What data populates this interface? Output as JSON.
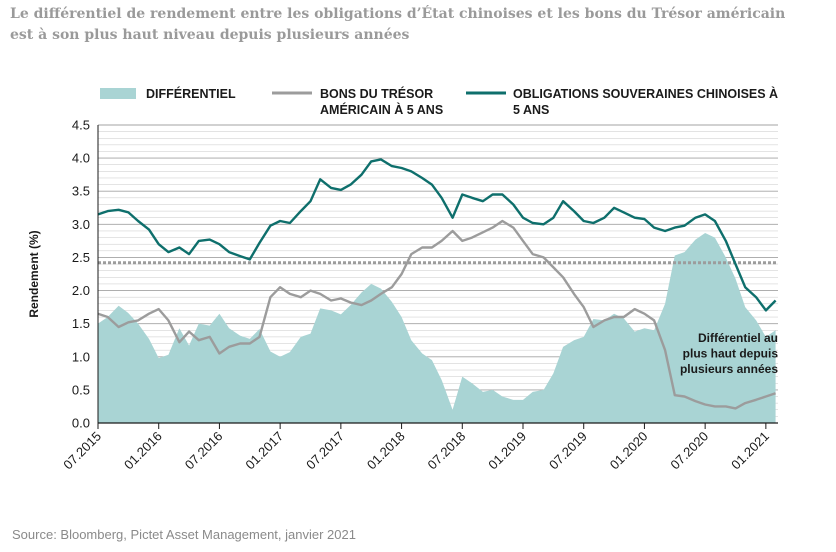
{
  "title": "Le différentiel de rendement entre les obligations d’État chinoises et les bons du Trésor américain est à son plus haut niveau depuis plusieurs années",
  "source": "Source: Bloomberg, Pictet Asset Management, janvier 2021",
  "colors": {
    "spread": "#a9d4d4",
    "us": "#9c9c9c",
    "cn": "#0e6f6c",
    "dotted": "#9c9c9c",
    "grid": "#9a9a9a"
  },
  "chart_data": {
    "type": "line",
    "ylabel": "Rendement (%)",
    "ylim": [
      0.0,
      4.5
    ],
    "yticks": [
      "0.0",
      "0.5",
      "1.0",
      "1.5",
      "2.0",
      "2.5",
      "3.0",
      "3.5",
      "4.0",
      "4.5"
    ],
    "xlim": [
      2015.5,
      2021.1
    ],
    "xticks": [
      {
        "t": 2015.5,
        "label": "07.2015"
      },
      {
        "t": 2016.0,
        "label": "01.2016"
      },
      {
        "t": 2016.5,
        "label": "07.2016"
      },
      {
        "t": 2017.0,
        "label": "01.2017"
      },
      {
        "t": 2017.5,
        "label": "07.2017"
      },
      {
        "t": 2018.0,
        "label": "01.2018"
      },
      {
        "t": 2018.5,
        "label": "07.2018"
      },
      {
        "t": 2019.0,
        "label": "01.2019"
      },
      {
        "t": 2019.5,
        "label": "07.2019"
      },
      {
        "t": 2020.0,
        "label": "01.2020"
      },
      {
        "t": 2020.5,
        "label": "07.2020"
      },
      {
        "t": 2021.0,
        "label": "01.2021"
      }
    ],
    "dotted_reference": 2.42,
    "annotation": [
      "Différentiel au",
      "plus haut depuis",
      "plusieurs années"
    ],
    "legend": {
      "spread": [
        "DIFFÉRENTIEL"
      ],
      "us": [
        "BONS DU TRÉSOR",
        "AMÉRICAIN À 5 ANS"
      ],
      "cn": [
        "OBLIGATIONS SOUVERAINES CHINOISES À",
        "5 ANS"
      ]
    },
    "series": [
      {
        "name": "OBLIGATIONS SOUVERAINES CHINOISES À 5 ANS",
        "key": "cn",
        "x": [
          2015.5,
          2015.58,
          2015.67,
          2015.75,
          2015.83,
          2015.92,
          2016.0,
          2016.08,
          2016.17,
          2016.25,
          2016.33,
          2016.42,
          2016.5,
          2016.58,
          2016.67,
          2016.75,
          2016.83,
          2016.92,
          2017.0,
          2017.08,
          2017.17,
          2017.25,
          2017.33,
          2017.42,
          2017.5,
          2017.58,
          2017.67,
          2017.75,
          2017.83,
          2017.92,
          2018.0,
          2018.08,
          2018.17,
          2018.25,
          2018.33,
          2018.42,
          2018.5,
          2018.58,
          2018.67,
          2018.75,
          2018.83,
          2018.92,
          2019.0,
          2019.08,
          2019.17,
          2019.25,
          2019.33,
          2019.42,
          2019.5,
          2019.58,
          2019.67,
          2019.75,
          2019.83,
          2019.92,
          2020.0,
          2020.08,
          2020.17,
          2020.25,
          2020.33,
          2020.42,
          2020.5,
          2020.58,
          2020.67,
          2020.75,
          2020.83,
          2020.92,
          2021.0,
          2021.08
        ],
        "values": [
          3.15,
          3.2,
          3.22,
          3.18,
          3.05,
          2.92,
          2.7,
          2.58,
          2.65,
          2.55,
          2.75,
          2.77,
          2.7,
          2.58,
          2.52,
          2.47,
          2.72,
          2.98,
          3.05,
          3.02,
          3.2,
          3.35,
          3.68,
          3.55,
          3.52,
          3.6,
          3.75,
          3.95,
          3.98,
          3.88,
          3.85,
          3.8,
          3.7,
          3.6,
          3.4,
          3.1,
          3.45,
          3.4,
          3.35,
          3.45,
          3.45,
          3.3,
          3.1,
          3.02,
          3.0,
          3.1,
          3.35,
          3.2,
          3.05,
          3.02,
          3.1,
          3.25,
          3.18,
          3.1,
          3.08,
          2.95,
          2.9,
          2.95,
          2.98,
          3.1,
          3.15,
          3.05,
          2.75,
          2.4,
          2.05,
          1.9,
          1.7,
          1.85
        ],
        "color": "#0e6f6c"
      },
      {
        "name": "BONS DU TRÉSOR AMÉRICAIN À 5 ANS",
        "key": "us",
        "x": [
          2015.5,
          2015.58,
          2015.67,
          2015.75,
          2015.83,
          2015.92,
          2016.0,
          2016.08,
          2016.17,
          2016.25,
          2016.33,
          2016.42,
          2016.5,
          2016.58,
          2016.67,
          2016.75,
          2016.83,
          2016.92,
          2017.0,
          2017.08,
          2017.17,
          2017.25,
          2017.33,
          2017.42,
          2017.5,
          2017.58,
          2017.67,
          2017.75,
          2017.83,
          2017.92,
          2018.0,
          2018.08,
          2018.17,
          2018.25,
          2018.33,
          2018.42,
          2018.5,
          2018.58,
          2018.67,
          2018.75,
          2018.83,
          2018.92,
          2019.0,
          2019.08,
          2019.17,
          2019.25,
          2019.33,
          2019.42,
          2019.5,
          2019.58,
          2019.67,
          2019.75,
          2019.83,
          2019.92,
          2020.0,
          2020.08,
          2020.17,
          2020.25,
          2020.33,
          2020.42,
          2020.5,
          2020.58,
          2020.67,
          2020.75,
          2020.83,
          2020.92,
          2021.0,
          2021.08
        ],
        "values": [
          1.65,
          1.6,
          1.45,
          1.52,
          1.55,
          1.65,
          1.72,
          1.55,
          1.22,
          1.38,
          1.25,
          1.3,
          1.05,
          1.15,
          1.2,
          1.2,
          1.3,
          1.9,
          2.05,
          1.95,
          1.9,
          2.0,
          1.95,
          1.85,
          1.88,
          1.82,
          1.78,
          1.85,
          1.95,
          2.05,
          2.25,
          2.55,
          2.65,
          2.65,
          2.75,
          2.9,
          2.75,
          2.8,
          2.88,
          2.95,
          3.05,
          2.95,
          2.75,
          2.55,
          2.5,
          2.35,
          2.2,
          1.95,
          1.75,
          1.45,
          1.55,
          1.6,
          1.6,
          1.72,
          1.65,
          1.55,
          1.1,
          0.42,
          0.4,
          0.33,
          0.28,
          0.25,
          0.25,
          0.22,
          0.3,
          0.35,
          0.4,
          0.45
        ],
        "color": "#9c9c9c"
      },
      {
        "name": "DIFFÉRENTIEL",
        "key": "spread",
        "x": [
          2015.5,
          2015.58,
          2015.67,
          2015.75,
          2015.83,
          2015.92,
          2016.0,
          2016.08,
          2016.17,
          2016.25,
          2016.33,
          2016.42,
          2016.5,
          2016.58,
          2016.67,
          2016.75,
          2016.83,
          2016.92,
          2017.0,
          2017.08,
          2017.17,
          2017.25,
          2017.33,
          2017.42,
          2017.5,
          2017.58,
          2017.67,
          2017.75,
          2017.83,
          2017.92,
          2018.0,
          2018.08,
          2018.17,
          2018.25,
          2018.33,
          2018.42,
          2018.5,
          2018.58,
          2018.67,
          2018.75,
          2018.83,
          2018.92,
          2019.0,
          2019.08,
          2019.17,
          2019.25,
          2019.33,
          2019.42,
          2019.5,
          2019.58,
          2019.67,
          2019.75,
          2019.83,
          2019.92,
          2020.0,
          2020.08,
          2020.17,
          2020.25,
          2020.33,
          2020.42,
          2020.5,
          2020.58,
          2020.67,
          2020.75,
          2020.83,
          2020.92,
          2021.0,
          2021.08
        ],
        "values": [
          1.5,
          1.6,
          1.77,
          1.66,
          1.5,
          1.27,
          0.98,
          1.03,
          1.43,
          1.17,
          1.5,
          1.47,
          1.65,
          1.43,
          1.32,
          1.27,
          1.42,
          1.08,
          1.0,
          1.07,
          1.3,
          1.35,
          1.73,
          1.7,
          1.64,
          1.78,
          1.97,
          2.1,
          2.03,
          1.83,
          1.6,
          1.25,
          1.05,
          0.95,
          0.65,
          0.2,
          0.7,
          0.6,
          0.47,
          0.5,
          0.4,
          0.35,
          0.35,
          0.47,
          0.5,
          0.75,
          1.15,
          1.25,
          1.3,
          1.57,
          1.55,
          1.65,
          1.58,
          1.38,
          1.43,
          1.4,
          1.8,
          2.53,
          2.58,
          2.77,
          2.87,
          2.8,
          2.5,
          2.18,
          1.75,
          1.55,
          1.3,
          1.4
        ],
        "color": "#a9d4d4"
      }
    ]
  }
}
